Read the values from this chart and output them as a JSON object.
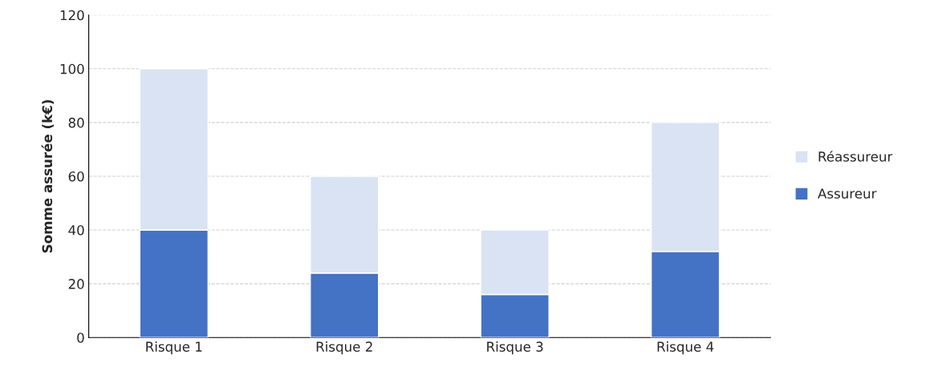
{
  "chart_data": {
    "type": "bar",
    "ylabel": "Somme assurée (k€)",
    "categories": [
      "Risque 1",
      "Risque 2",
      "Risque 3",
      "Risque 4"
    ],
    "series": [
      {
        "name": "Assureur",
        "color": "#4472c4",
        "values": [
          40,
          24,
          16,
          32
        ]
      },
      {
        "name": "Réassureur",
        "color": "#dae3f3",
        "values": [
          60,
          36,
          24,
          48
        ]
      }
    ],
    "stacked": true,
    "ylim": [
      0,
      120
    ],
    "yticks": [
      0,
      20,
      40,
      60,
      80,
      100,
      120
    ],
    "grid": "y",
    "legend": "right"
  }
}
